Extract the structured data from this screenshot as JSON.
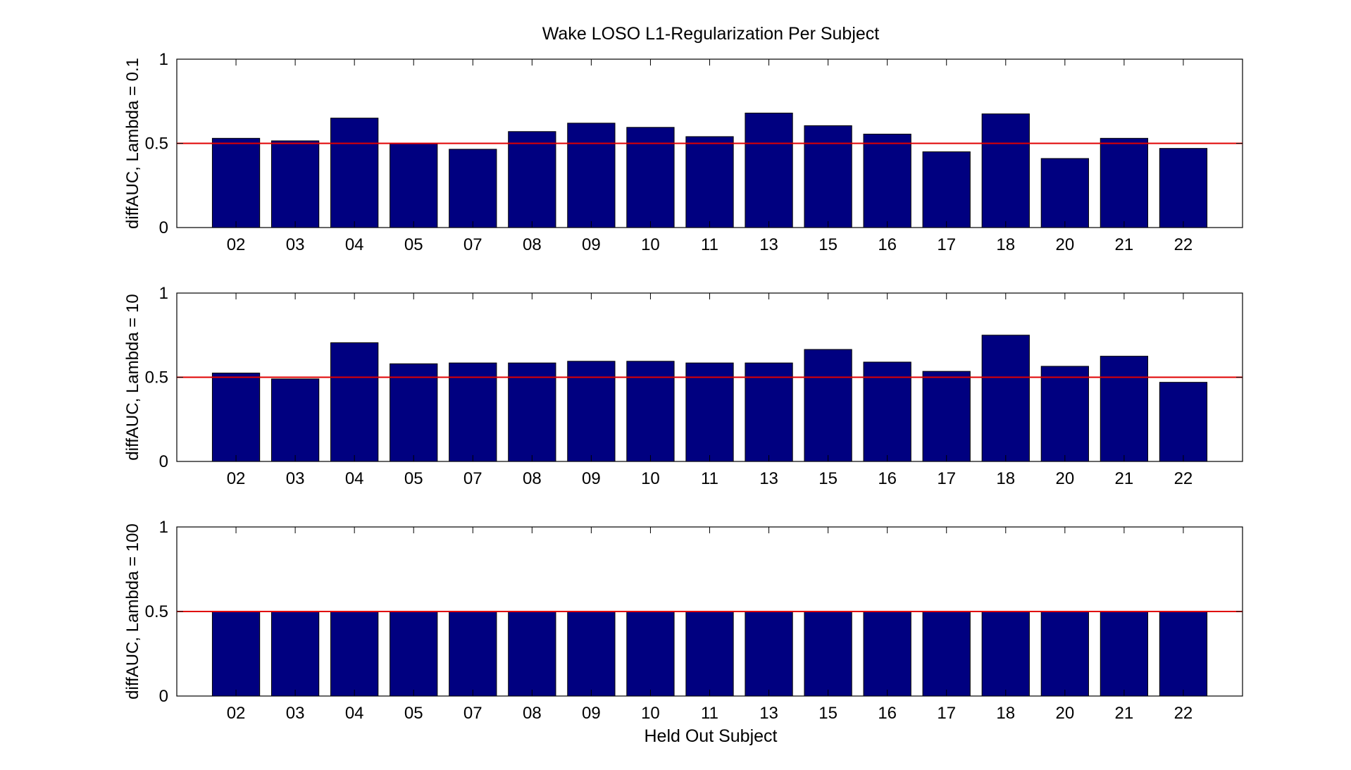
{
  "figure": {
    "title": "Wake LOSO L1-Regularization Per Subject",
    "xlabel": "Held Out Subject"
  },
  "colors": {
    "bar": "#000080",
    "reference_line": "#e00000",
    "axes": "#000000",
    "background": "#ffffff"
  },
  "chart_data": [
    {
      "type": "bar",
      "title": "Wake LOSO L1-Regularization Per Subject",
      "xlabel": "",
      "ylabel": "diffAUC, Lambda = 0.1",
      "ylim": [
        0,
        1
      ],
      "yticks": [
        "0",
        "0.5",
        "1"
      ],
      "grid": false,
      "reference_line": 0.5,
      "categories": [
        "02",
        "03",
        "04",
        "05",
        "07",
        "08",
        "09",
        "10",
        "11",
        "13",
        "15",
        "16",
        "17",
        "18",
        "20",
        "21",
        "22"
      ],
      "values": [
        0.53,
        0.515,
        0.65,
        0.5,
        0.465,
        0.57,
        0.62,
        0.595,
        0.54,
        0.68,
        0.605,
        0.555,
        0.45,
        0.675,
        0.41,
        0.53,
        0.47
      ]
    },
    {
      "type": "bar",
      "title": "",
      "xlabel": "",
      "ylabel": "diffAUC, Lambda = 10",
      "ylim": [
        0,
        1
      ],
      "yticks": [
        "0",
        "0.5",
        "1"
      ],
      "grid": false,
      "reference_line": 0.5,
      "categories": [
        "02",
        "03",
        "04",
        "05",
        "07",
        "08",
        "09",
        "10",
        "11",
        "13",
        "15",
        "16",
        "17",
        "18",
        "20",
        "21",
        "22"
      ],
      "values": [
        0.525,
        0.49,
        0.705,
        0.58,
        0.585,
        0.585,
        0.595,
        0.595,
        0.585,
        0.585,
        0.665,
        0.59,
        0.535,
        0.75,
        0.565,
        0.625,
        0.47
      ]
    },
    {
      "type": "bar",
      "title": "",
      "xlabel": "Held Out Subject",
      "ylabel": "diffAUC, Lambda = 100",
      "ylim": [
        0,
        1
      ],
      "yticks": [
        "0",
        "0.5",
        "1"
      ],
      "grid": false,
      "reference_line": 0.5,
      "categories": [
        "02",
        "03",
        "04",
        "05",
        "07",
        "08",
        "09",
        "10",
        "11",
        "13",
        "15",
        "16",
        "17",
        "18",
        "20",
        "21",
        "22"
      ],
      "values": [
        0.5,
        0.5,
        0.5,
        0.5,
        0.5,
        0.5,
        0.5,
        0.5,
        0.5,
        0.5,
        0.5,
        0.5,
        0.5,
        0.5,
        0.5,
        0.5,
        0.5
      ]
    }
  ]
}
